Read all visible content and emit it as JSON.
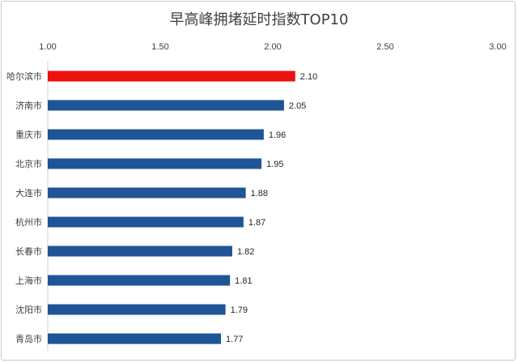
{
  "chart_data": {
    "type": "bar",
    "orientation": "horizontal",
    "title": "早高峰拥堵延时指数TOP10",
    "categories": [
      "哈尔滨市",
      "济南市",
      "重庆市",
      "北京市",
      "大连市",
      "杭州市",
      "长春市",
      "上海市",
      "沈阳市",
      "青岛市"
    ],
    "values": [
      2.1,
      2.05,
      1.96,
      1.95,
      1.88,
      1.87,
      1.82,
      1.81,
      1.79,
      1.77
    ],
    "data_labels": [
      "2.10",
      "2.05",
      "1.96",
      "1.95",
      "1.88",
      "1.87",
      "1.82",
      "1.81",
      "1.79",
      "1.77"
    ],
    "xlim": [
      1.0,
      3.0
    ],
    "xticks": [
      "1.00",
      "1.50",
      "2.00",
      "2.50",
      "3.00"
    ],
    "xaxis_position": "top",
    "grid": false,
    "legend": "none",
    "colors": {
      "default": "#1f5597",
      "highlight": "#ee1111",
      "highlight_index": 0
    }
  }
}
